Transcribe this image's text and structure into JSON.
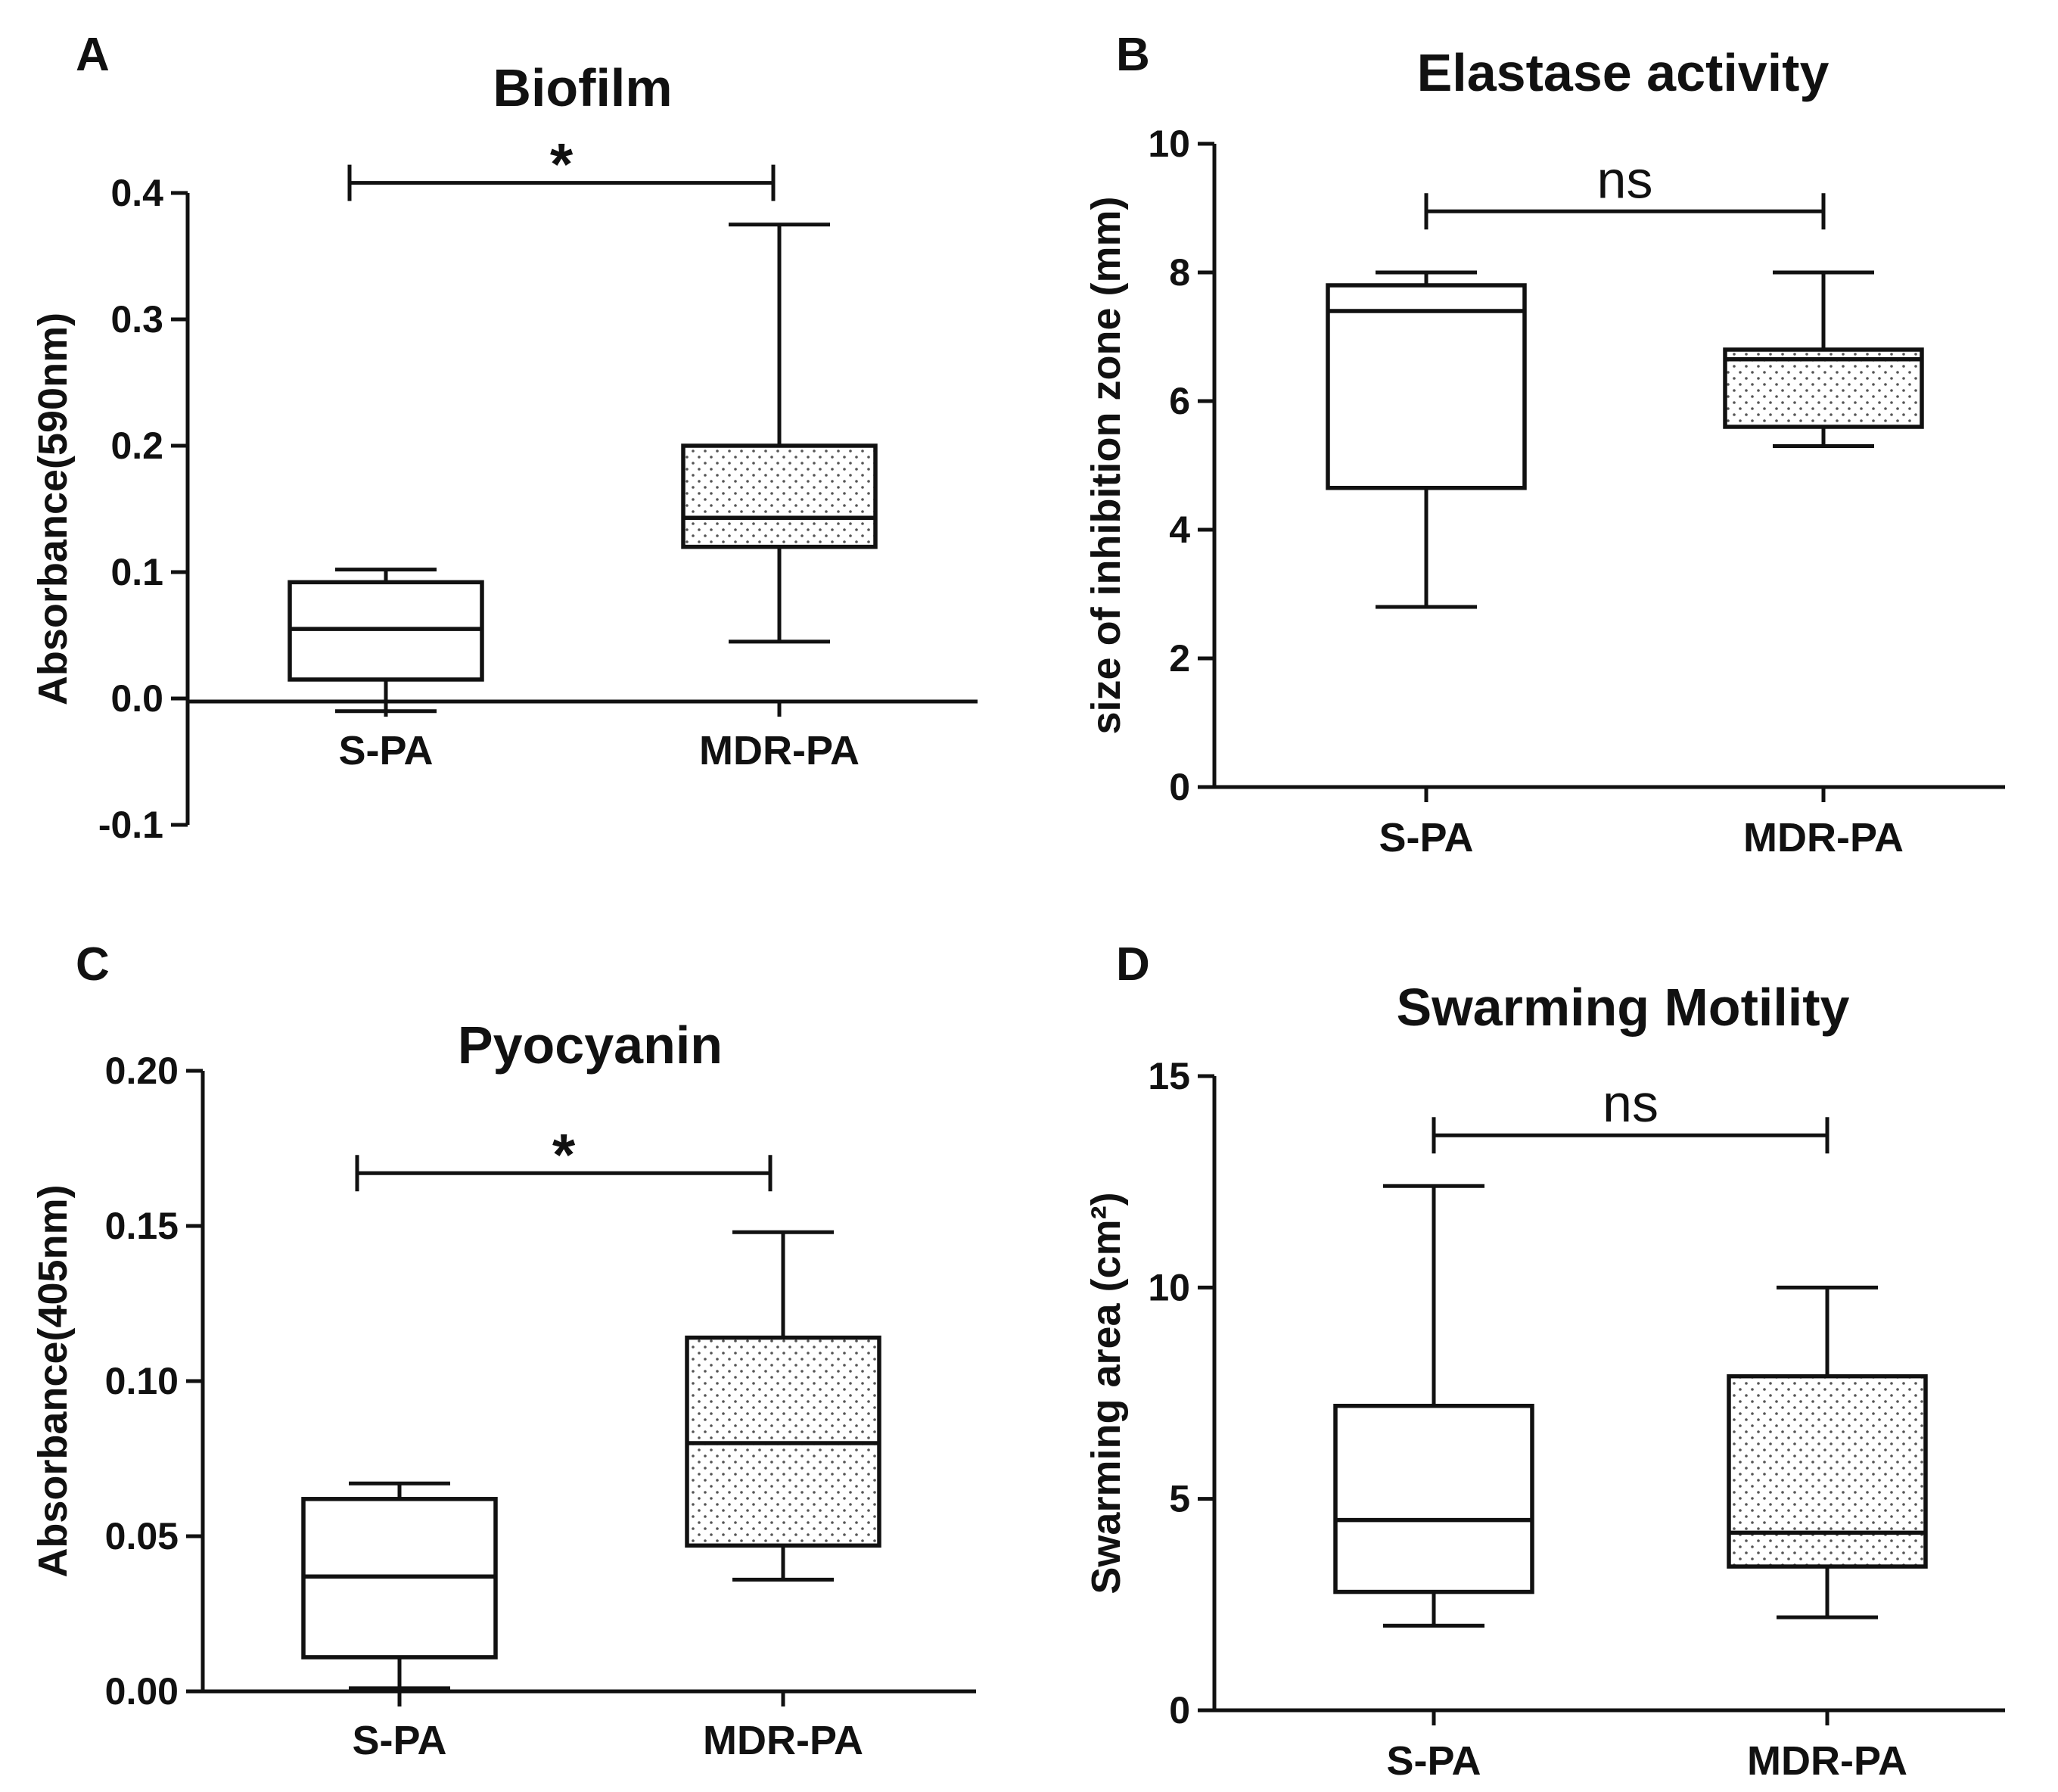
{
  "chart_data": [
    {
      "panel": "A",
      "type": "boxplot",
      "title": "Biofilm",
      "ylabel": "Absorbance(590nm)",
      "xlabel": "",
      "ylim": [
        -0.1,
        0.4
      ],
      "yticks": [
        -0.1,
        0.0,
        0.1,
        0.2,
        0.3,
        0.4
      ],
      "ytick_labels": [
        "-0.1",
        "0.0",
        "0.1",
        "0.2",
        "0.3",
        "0.4"
      ],
      "categories": [
        "S-PA",
        "MDR-PA"
      ],
      "boxes": [
        {
          "name": "S-PA",
          "min": -0.01,
          "q1": 0.015,
          "median": 0.055,
          "q3": 0.092,
          "max": 0.102,
          "fill": "none"
        },
        {
          "name": "MDR-PA",
          "min": 0.045,
          "q1": 0.12,
          "median": 0.143,
          "q3": 0.2,
          "max": 0.375,
          "fill": "dotted"
        }
      ],
      "significance": {
        "label": "*",
        "y": 0.408
      }
    },
    {
      "panel": "B",
      "type": "boxplot",
      "title": "Elastase activity",
      "ylabel": "size of inhibition zone (mm)",
      "xlabel": "",
      "ylim": [
        0,
        10
      ],
      "yticks": [
        0,
        2,
        4,
        6,
        8,
        10
      ],
      "ytick_labels": [
        "0",
        "2",
        "4",
        "6",
        "8",
        "10"
      ],
      "categories": [
        "S-PA",
        "MDR-PA"
      ],
      "boxes": [
        {
          "name": "S-PA",
          "min": 2.8,
          "q1": 4.65,
          "median": 7.4,
          "q3": 7.8,
          "max": 8.0,
          "fill": "none"
        },
        {
          "name": "MDR-PA",
          "min": 5.3,
          "q1": 5.6,
          "median": 6.65,
          "q3": 6.8,
          "max": 8.0,
          "fill": "dotted"
        }
      ],
      "significance": {
        "label": "ns",
        "y": 8.95
      }
    },
    {
      "panel": "C",
      "type": "boxplot",
      "title": "Pyocyanin",
      "ylabel": "Absorbance(405nm)",
      "xlabel": "",
      "ylim": [
        0,
        0.2
      ],
      "yticks": [
        0,
        0.05,
        0.1,
        0.15,
        0.2
      ],
      "ytick_labels": [
        "0.00",
        "0.05",
        "0.10",
        "0.15",
        "0.20"
      ],
      "categories": [
        "S-PA",
        "MDR-PA"
      ],
      "boxes": [
        {
          "name": "S-PA",
          "min": 0.001,
          "q1": 0.011,
          "median": 0.037,
          "q3": 0.062,
          "max": 0.067,
          "fill": "none"
        },
        {
          "name": "MDR-PA",
          "min": 0.036,
          "q1": 0.047,
          "median": 0.08,
          "q3": 0.114,
          "max": 0.148,
          "fill": "dotted"
        }
      ],
      "significance": {
        "label": "*",
        "y": 0.167
      }
    },
    {
      "panel": "D",
      "type": "boxplot",
      "title": "Swarming Motility",
      "ylabel": "Swarming area (cm²)",
      "xlabel": "",
      "ylim": [
        0,
        15
      ],
      "yticks": [
        0,
        5,
        10,
        15
      ],
      "ytick_labels": [
        "0",
        "5",
        "10",
        "15"
      ],
      "categories": [
        "S-PA",
        "MDR-PA"
      ],
      "boxes": [
        {
          "name": "S-PA",
          "min": 2.0,
          "q1": 2.8,
          "median": 4.5,
          "q3": 7.2,
          "max": 12.4,
          "fill": "none"
        },
        {
          "name": "MDR-PA",
          "min": 2.2,
          "q1": 3.4,
          "median": 4.2,
          "q3": 7.9,
          "max": 10.0,
          "fill": "dotted"
        }
      ],
      "significance": {
        "label": "ns",
        "y": 13.6
      }
    }
  ]
}
